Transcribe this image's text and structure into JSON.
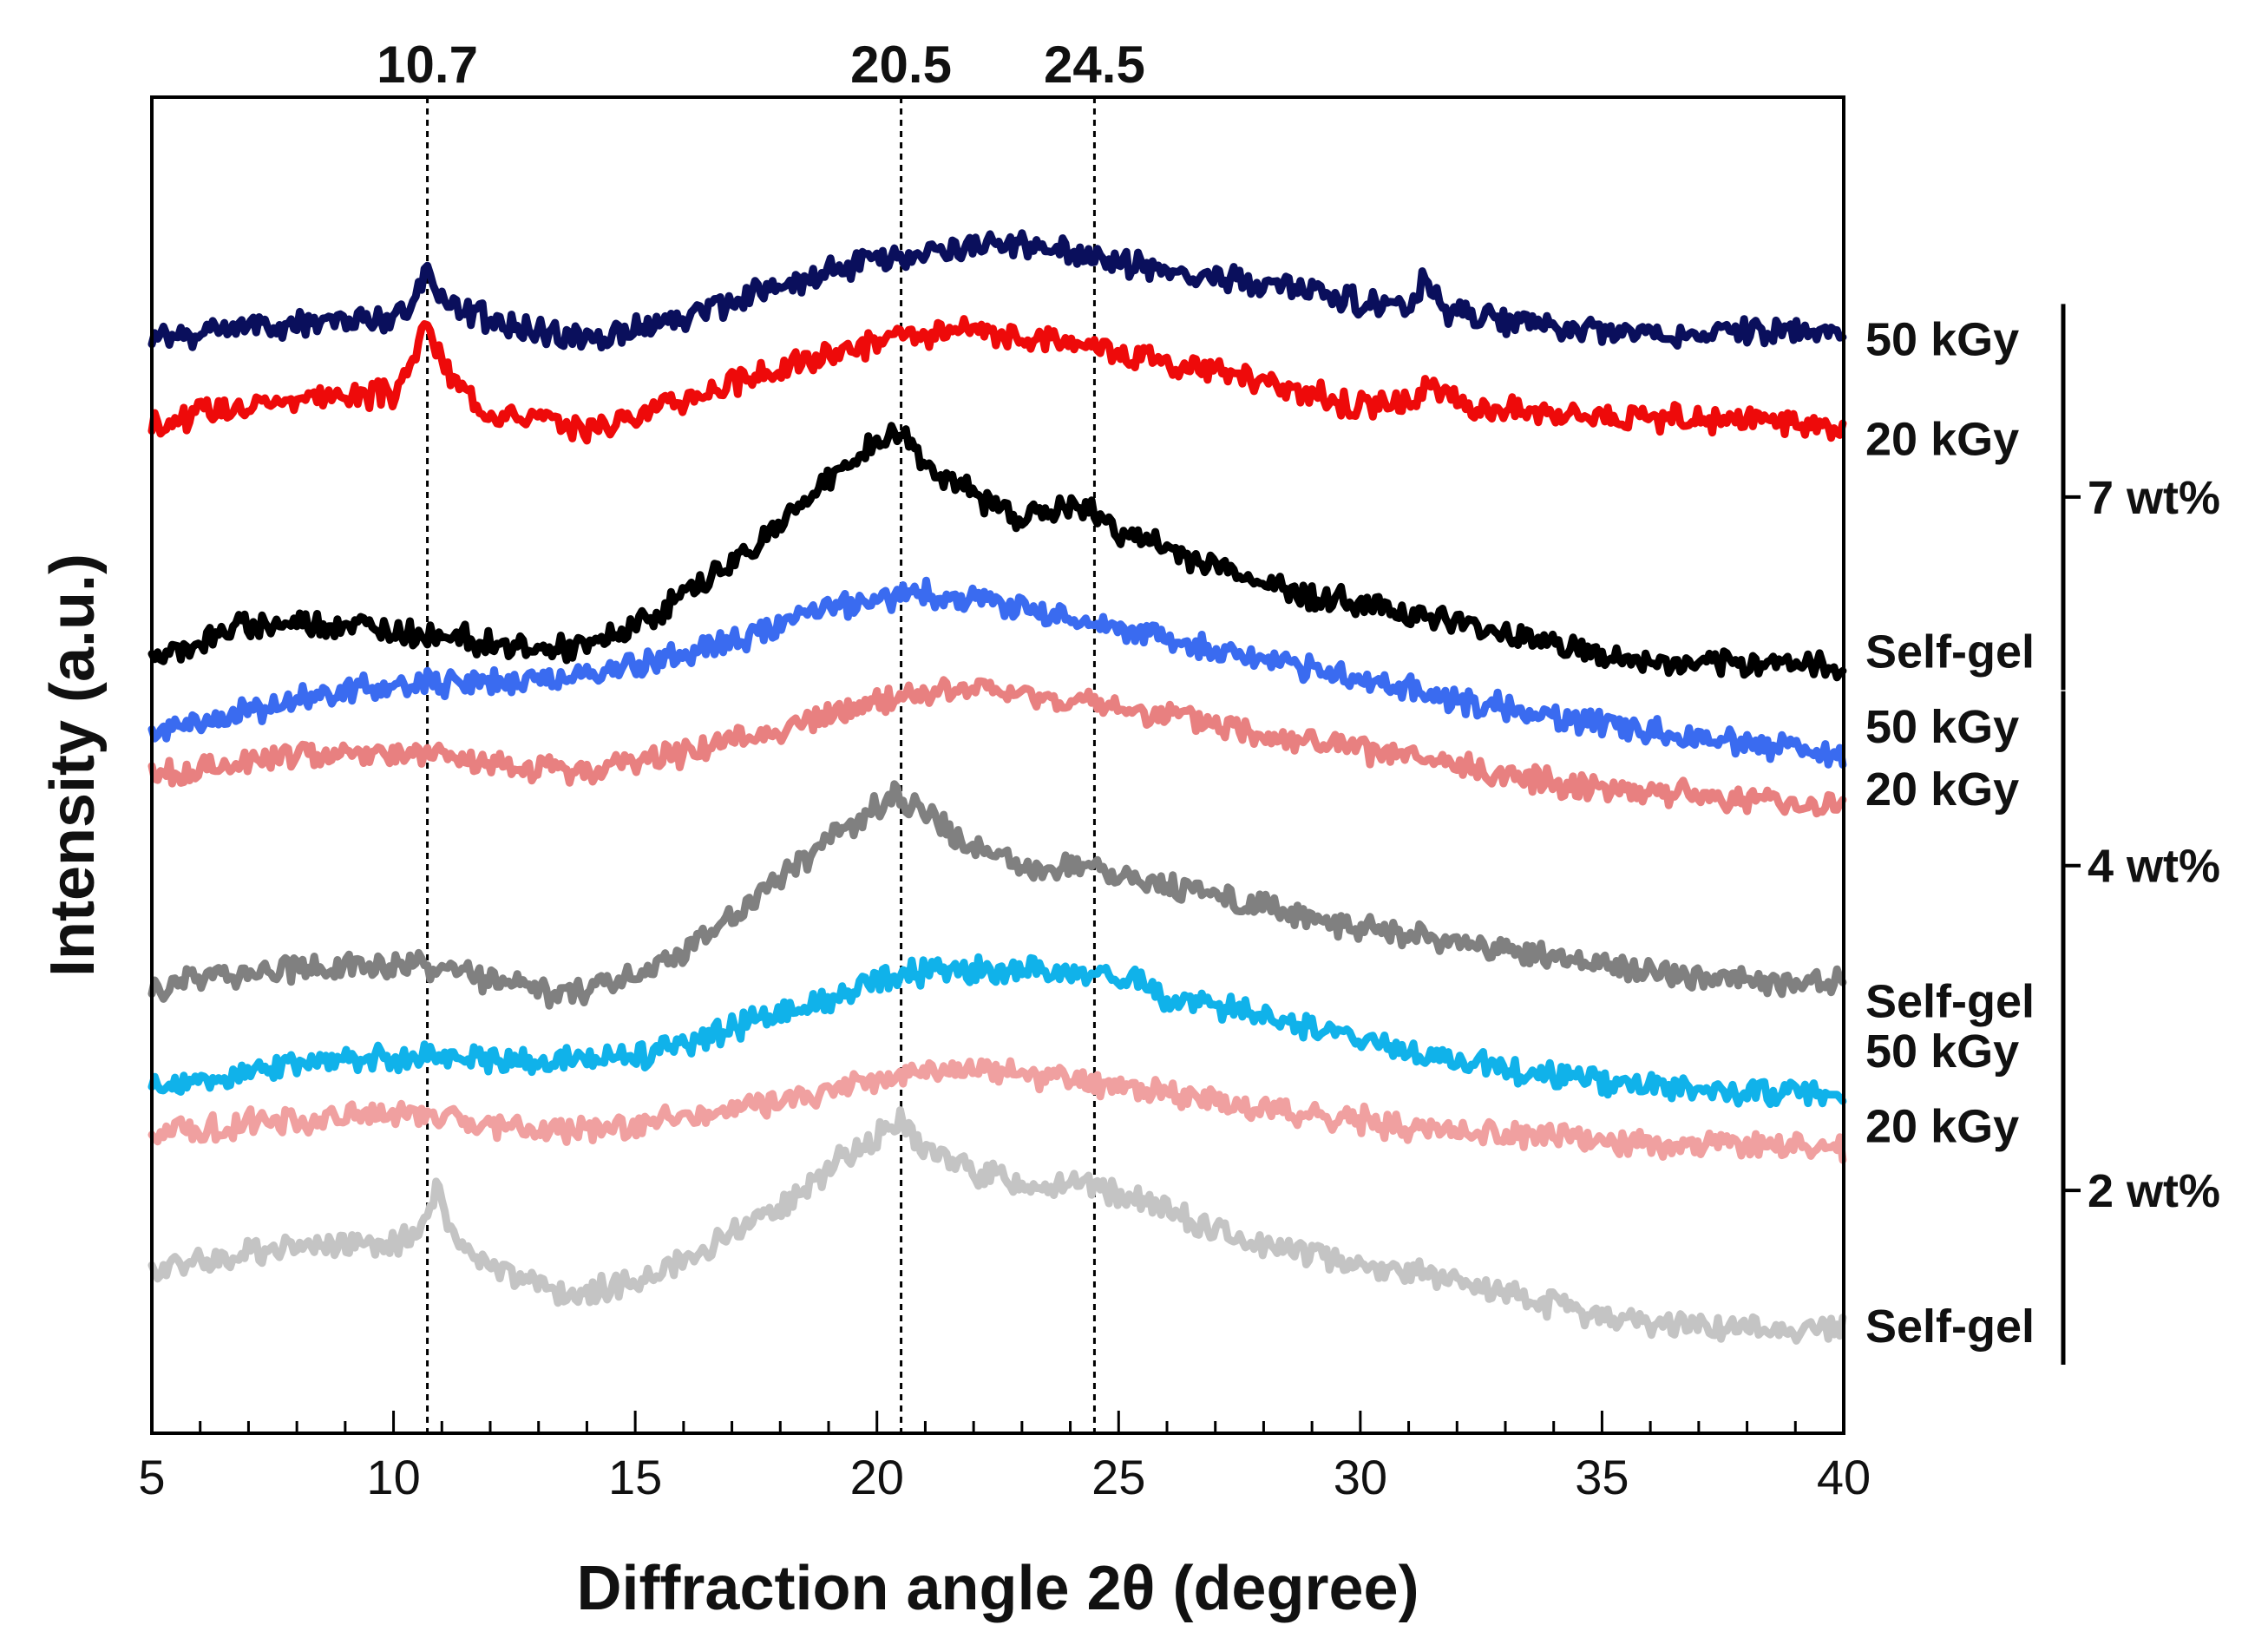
{
  "chart_data": {
    "type": "line",
    "title": "",
    "xlabel": "Diffraction angle 2θ (degree)",
    "ylabel": "Intensity (a.u.)",
    "xlim": [
      5,
      40
    ],
    "x_ticks": [
      5,
      10,
      15,
      20,
      25,
      30,
      35,
      40
    ],
    "yticks_visible": false,
    "peak_markers": [
      {
        "x": 10.7,
        "label": "10.7"
      },
      {
        "x": 20.5,
        "label": "20.5"
      },
      {
        "x": 24.5,
        "label": "24.5"
      }
    ],
    "groups": [
      {
        "label": "7 wt%",
        "members": [
          "50 kGy",
          "20 kGy",
          "Self-gel"
        ]
      },
      {
        "label": "4 wt%",
        "members": [
          "50 kGy",
          "20 kGy",
          "Self-gel"
        ]
      },
      {
        "label": "2 wt%",
        "members": [
          "50 kGy",
          "20 kGy",
          "Self-gel"
        ]
      }
    ],
    "series": [
      {
        "name": "50 kGy",
        "group": "7 wt%",
        "color": "#0a0f5c",
        "label_pos": 0.84,
        "x": [
          5,
          7,
          9,
          10,
          10.4,
          10.7,
          11,
          11.5,
          12,
          13,
          14,
          16,
          18,
          20,
          21,
          23,
          24.5,
          26,
          28,
          30,
          31,
          31.3,
          31.7,
          33,
          35,
          37,
          38.5,
          40
        ],
        "y": [
          0.84,
          0.851,
          0.855,
          0.856,
          0.867,
          0.899,
          0.872,
          0.861,
          0.855,
          0.845,
          0.839,
          0.857,
          0.882,
          0.903,
          0.91,
          0.916,
          0.906,
          0.893,
          0.885,
          0.87,
          0.862,
          0.885,
          0.862,
          0.855,
          0.846,
          0.842,
          0.848,
          0.84
        ]
      },
      {
        "name": "20 kGy",
        "group": "7 wt%",
        "color": "#ee0a0a",
        "label_pos": 0.76,
        "x": [
          5,
          7,
          9,
          10,
          10.4,
          10.7,
          11,
          11.5,
          12,
          14,
          16,
          18,
          20,
          22,
          24.5,
          26,
          28,
          30,
          31,
          31.5,
          32,
          34,
          36,
          38,
          40
        ],
        "y": [
          0.771,
          0.789,
          0.795,
          0.795,
          0.82,
          0.856,
          0.818,
          0.795,
          0.783,
          0.768,
          0.791,
          0.816,
          0.838,
          0.845,
          0.835,
          0.822,
          0.805,
          0.786,
          0.79,
          0.802,
          0.787,
          0.782,
          0.776,
          0.776,
          0.768
        ]
      },
      {
        "name": "Self-gel",
        "group": "7 wt%",
        "color": "#000000",
        "label_pos": 0.59,
        "x": [
          5,
          6,
          7,
          8,
          9,
          10,
          11,
          12,
          13,
          14,
          15,
          16,
          17,
          18,
          19,
          20,
          20.5,
          21,
          22,
          23,
          24,
          24.5,
          25,
          26,
          27,
          28,
          29,
          30,
          31,
          32,
          33,
          34,
          35,
          36,
          37,
          38,
          38.5,
          39,
          40
        ],
        "y": [
          0.585,
          0.597,
          0.611,
          0.613,
          0.611,
          0.606,
          0.604,
          0.597,
          0.591,
          0.592,
          0.61,
          0.635,
          0.66,
          0.692,
          0.728,
          0.757,
          0.765,
          0.74,
          0.714,
          0.697,
          0.705,
          0.7,
          0.686,
          0.671,
          0.658,
          0.645,
          0.634,
          0.628,
          0.621,
          0.612,
          0.605,
          0.597,
          0.585,
          0.58,
          0.578,
          0.578,
          0.584,
          0.579,
          0.575
        ]
      },
      {
        "name": "50 kGy",
        "group": "4 wt%",
        "color": "#3a6bf0",
        "label_pos": 0.53,
        "x": [
          5,
          7,
          9,
          11,
          13,
          15,
          17,
          19,
          20.5,
          22,
          24,
          26,
          28,
          30,
          32,
          34,
          36,
          38,
          40
        ],
        "y": [
          0.525,
          0.542,
          0.558,
          0.565,
          0.567,
          0.577,
          0.597,
          0.623,
          0.636,
          0.633,
          0.617,
          0.601,
          0.583,
          0.567,
          0.551,
          0.538,
          0.526,
          0.518,
          0.505
        ]
      },
      {
        "name": "20 kGy",
        "group": "4 wt%",
        "color": "#e88080",
        "label_pos": 0.48,
        "x": [
          5,
          7,
          9,
          11,
          12,
          14,
          16,
          18,
          20.5,
          22,
          24.5,
          26,
          28,
          30,
          32,
          34,
          36,
          38,
          40
        ],
        "y": [
          0.488,
          0.502,
          0.51,
          0.506,
          0.497,
          0.494,
          0.509,
          0.527,
          0.554,
          0.56,
          0.547,
          0.538,
          0.524,
          0.511,
          0.497,
          0.485,
          0.478,
          0.471,
          0.466
        ]
      },
      {
        "name": "Self-gel",
        "group": "4 wt%",
        "color": "#808080",
        "label_pos": 0.31,
        "x": [
          5,
          7,
          9,
          10.7,
          12,
          13.5,
          15,
          16,
          17,
          18,
          19,
          20,
          20.5,
          21,
          22,
          23,
          24.5,
          25,
          26,
          27,
          28,
          29,
          30,
          31,
          32,
          33,
          34,
          35,
          36,
          37,
          38,
          39,
          40
        ],
        "y": [
          0.322,
          0.334,
          0.339,
          0.337,
          0.326,
          0.314,
          0.33,
          0.352,
          0.376,
          0.408,
          0.439,
          0.466,
          0.475,
          0.458,
          0.433,
          0.416,
          0.421,
          0.413,
          0.404,
          0.394,
          0.384,
          0.376,
          0.369,
          0.361,
          0.356,
          0.349,
          0.344,
          0.339,
          0.334,
          0.329,
          0.327,
          0.326,
          0.325
        ]
      },
      {
        "name": "50 kGy",
        "group": "2 wt%",
        "color": "#10b2ea",
        "label_pos": 0.27,
        "x": [
          5,
          7,
          9,
          11,
          13,
          15,
          17,
          19,
          20.5,
          22,
          24,
          25,
          26,
          28,
          30,
          32,
          34,
          36,
          38,
          40
        ],
        "y": [
          0.24,
          0.252,
          0.262,
          0.267,
          0.261,
          0.265,
          0.289,
          0.31,
          0.331,
          0.335,
          0.333,
          0.33,
          0.312,
          0.3,
          0.277,
          0.262,
          0.25,
          0.241,
          0.237,
          0.235
        ]
      },
      {
        "name": "20 kGy",
        "group": "2 wt%",
        "color": "#f0a0a0",
        "label_pos": 0.21,
        "x": [
          5,
          7,
          9,
          10.7,
          12,
          14,
          16,
          18,
          20.5,
          22,
          24.5,
          26,
          28,
          30,
          32,
          34,
          36,
          38,
          40
        ],
        "y": [
          0.202,
          0.212,
          0.217,
          0.221,
          0.209,
          0.205,
          0.216,
          0.23,
          0.249,
          0.256,
          0.245,
          0.236,
          0.224,
          0.214,
          0.206,
          0.2,
          0.196,
          0.194,
          0.193
        ]
      },
      {
        "name": "Self-gel",
        "group": "2 wt%",
        "color": "#c4c4c4",
        "label_pos": 0.05,
        "x": [
          5,
          7,
          9,
          10,
          10.5,
          10.9,
          11.3,
          12,
          13.5,
          15,
          16,
          17,
          18,
          19,
          20,
          20.5,
          21,
          22,
          23,
          24.5,
          26,
          27,
          28,
          29,
          30,
          31,
          32,
          33,
          34,
          35,
          36,
          37,
          38,
          39,
          40
        ],
        "y": [
          0.09,
          0.109,
          0.116,
          0.117,
          0.124,
          0.159,
          0.115,
          0.097,
          0.074,
          0.084,
          0.102,
          0.124,
          0.146,
          0.175,
          0.203,
          0.212,
          0.192,
          0.173,
          0.165,
          0.163,
          0.141,
          0.126,
          0.115,
          0.107,
          0.1,
          0.094,
          0.085,
          0.075,
          0.066,
          0.058,
          0.052,
          0.05,
          0.048,
          0.048,
          0.048
        ]
      }
    ]
  }
}
